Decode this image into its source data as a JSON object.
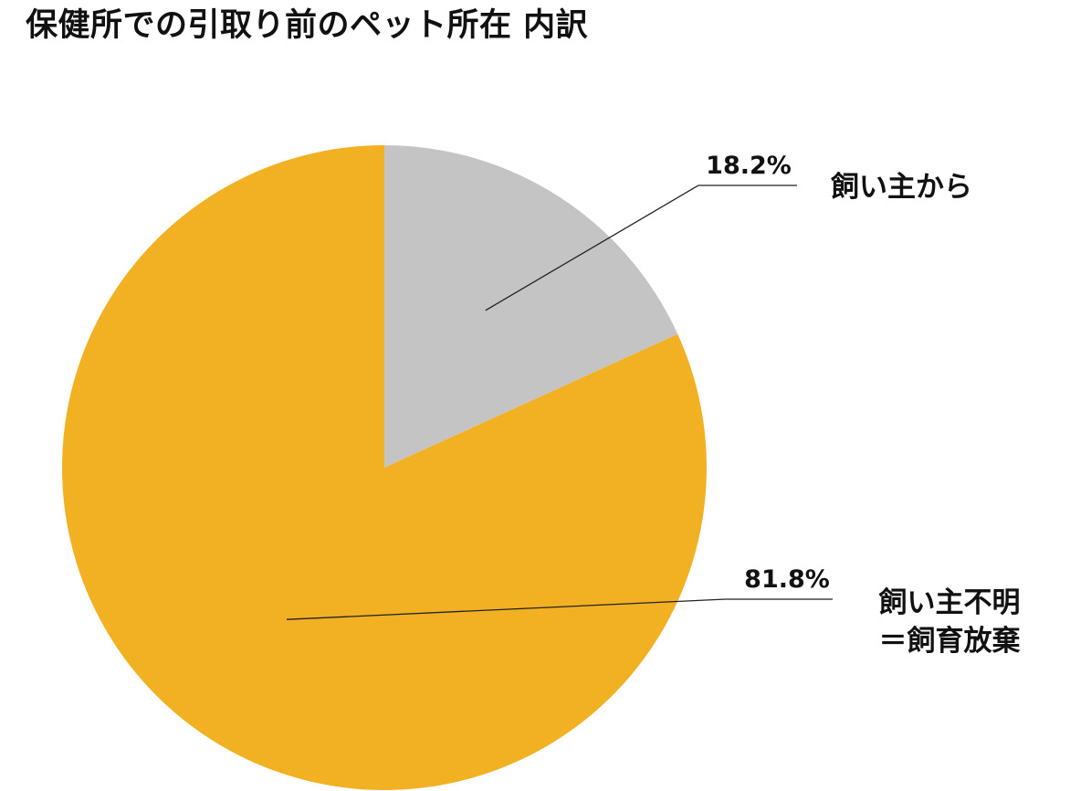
{
  "chart_data": {
    "type": "pie",
    "title": "保健所での引取り前のペット所在 内訳",
    "start_angle_deg": 0,
    "direction": "clockwise",
    "slices": [
      {
        "label_lines": [
          "飼い主から"
        ],
        "value": 18.2,
        "value_label": "18.2%",
        "color": "#c4c4c4"
      },
      {
        "label_lines": [
          "飼い主不明",
          "＝飼育放棄"
        ],
        "value": 81.8,
        "value_label": "81.8%",
        "color": "#f2b123"
      }
    ],
    "legend": "none",
    "grid": false,
    "data_labels": "outside with leader lines"
  }
}
